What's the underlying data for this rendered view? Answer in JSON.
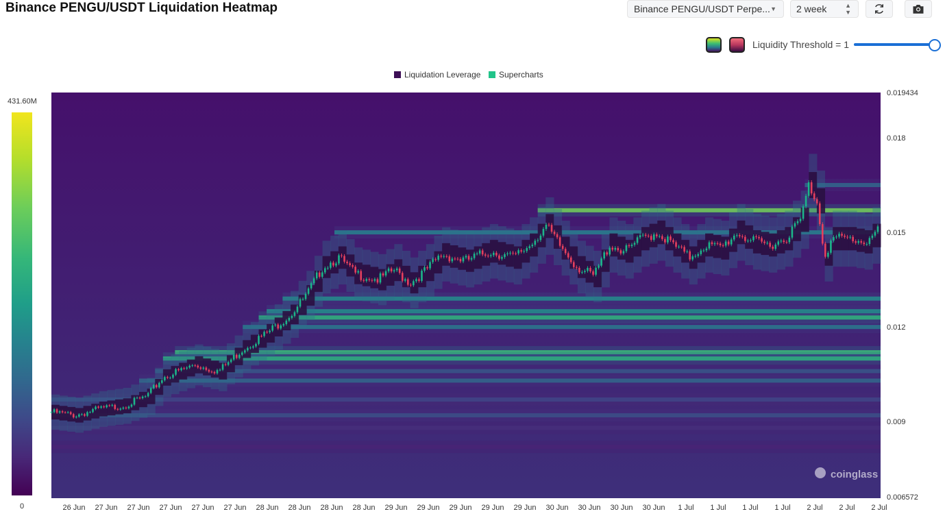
{
  "header": {
    "title": "Binance PENGU/USDT Liquidation Heatmap",
    "exchange_select": "Binance PENGU/USDT Perpe...",
    "range_select": "2 week"
  },
  "controls": {
    "threshold_label": "Liquidity Threshold = 1",
    "threshold_value": 1,
    "refresh_icon": "refresh-icon",
    "camera_icon": "camera-icon"
  },
  "colorbar": {
    "max_label": "431.60M",
    "min_label": "0"
  },
  "watermark": "coinglass",
  "colors": {
    "liquidation_leverage": "#3d0f56",
    "supercharts": "#22c48a",
    "candle_up": "#1cb58a",
    "candle_down": "#e5405e",
    "heat_low": "#440154",
    "heat_high": "#f1e51d"
  },
  "chart_data": {
    "type": "heatmap",
    "title": "Binance PENGU/USDT Liquidation Heatmap",
    "legend": [
      "Liquidation Leverage",
      "Supercharts"
    ],
    "legend_position": "top-center",
    "y_tick_labels": [
      "0.019434",
      "0.018",
      "0.015",
      "0.012",
      "0.009",
      "0.006572"
    ],
    "ylim": [
      0.006572,
      0.019434
    ],
    "x_tick_labels": [
      "26 Jun",
      "27 Jun",
      "27 Jun",
      "27 Jun",
      "27 Jun",
      "27 Jun",
      "28 Jun",
      "28 Jun",
      "28 Jun",
      "28 Jun",
      "29 Jun",
      "29 Jun",
      "29 Jun",
      "29 Jun",
      "29 Jun",
      "30 Jun",
      "30 Jun",
      "30 Jun",
      "30 Jun",
      "1 Jul",
      "1 Jul",
      "1 Jul",
      "1 Jul",
      "2 Jul",
      "2 Jul",
      "2 Jul"
    ],
    "colorbar_range": [
      0,
      431600000
    ],
    "price_path": [
      [
        0,
        0.0093
      ],
      [
        3,
        0.0092
      ],
      [
        6,
        0.0094
      ],
      [
        9,
        0.0095
      ],
      [
        12,
        0.0098
      ],
      [
        14,
        0.0104
      ],
      [
        16,
        0.0106
      ],
      [
        18,
        0.0108
      ],
      [
        21,
        0.0106
      ],
      [
        24,
        0.0113
      ],
      [
        27,
        0.0118
      ],
      [
        30,
        0.0124
      ],
      [
        32,
        0.013
      ],
      [
        34,
        0.0139
      ],
      [
        36,
        0.0142
      ],
      [
        38,
        0.0137
      ],
      [
        41,
        0.0135
      ],
      [
        43,
        0.0138
      ],
      [
        45,
        0.0134
      ],
      [
        47,
        0.0138
      ],
      [
        49,
        0.0143
      ],
      [
        52,
        0.0141
      ],
      [
        55,
        0.0144
      ],
      [
        58,
        0.0142
      ],
      [
        60,
        0.0146
      ],
      [
        62,
        0.0152
      ],
      [
        64,
        0.0145
      ],
      [
        66,
        0.0139
      ],
      [
        68,
        0.0136
      ],
      [
        70,
        0.0146
      ],
      [
        72,
        0.0144
      ],
      [
        74,
        0.0148
      ],
      [
        76,
        0.015
      ],
      [
        78,
        0.0146
      ],
      [
        80,
        0.0142
      ],
      [
        82,
        0.0146
      ],
      [
        84,
        0.0145
      ],
      [
        86,
        0.015
      ],
      [
        88,
        0.0147
      ],
      [
        90,
        0.0146
      ],
      [
        92,
        0.0148
      ],
      [
        94,
        0.0154
      ],
      [
        95,
        0.0165
      ],
      [
        96,
        0.016
      ],
      [
        97,
        0.0143
      ],
      [
        98,
        0.0148
      ],
      [
        100,
        0.0148
      ],
      [
        102,
        0.0147
      ],
      [
        104,
        0.0151
      ]
    ],
    "liquidity_bands": [
      {
        "price": 0.0157,
        "intensity": 0.92
      },
      {
        "price": 0.0165,
        "intensity": 0.45
      },
      {
        "price": 0.015,
        "intensity": 0.55
      },
      {
        "price": 0.0129,
        "intensity": 0.6
      },
      {
        "price": 0.0125,
        "intensity": 0.62
      },
      {
        "price": 0.0123,
        "intensity": 0.8
      },
      {
        "price": 0.012,
        "intensity": 0.5
      },
      {
        "price": 0.0112,
        "intensity": 0.82
      },
      {
        "price": 0.011,
        "intensity": 0.78
      },
      {
        "price": 0.0106,
        "intensity": 0.4
      },
      {
        "price": 0.0103,
        "intensity": 0.45
      },
      {
        "price": 0.0097,
        "intensity": 0.35
      },
      {
        "price": 0.0092,
        "intensity": 0.38
      },
      {
        "price": 0.0088,
        "intensity": 0.25
      },
      {
        "price": 0.0082,
        "intensity": 0.2
      }
    ]
  }
}
